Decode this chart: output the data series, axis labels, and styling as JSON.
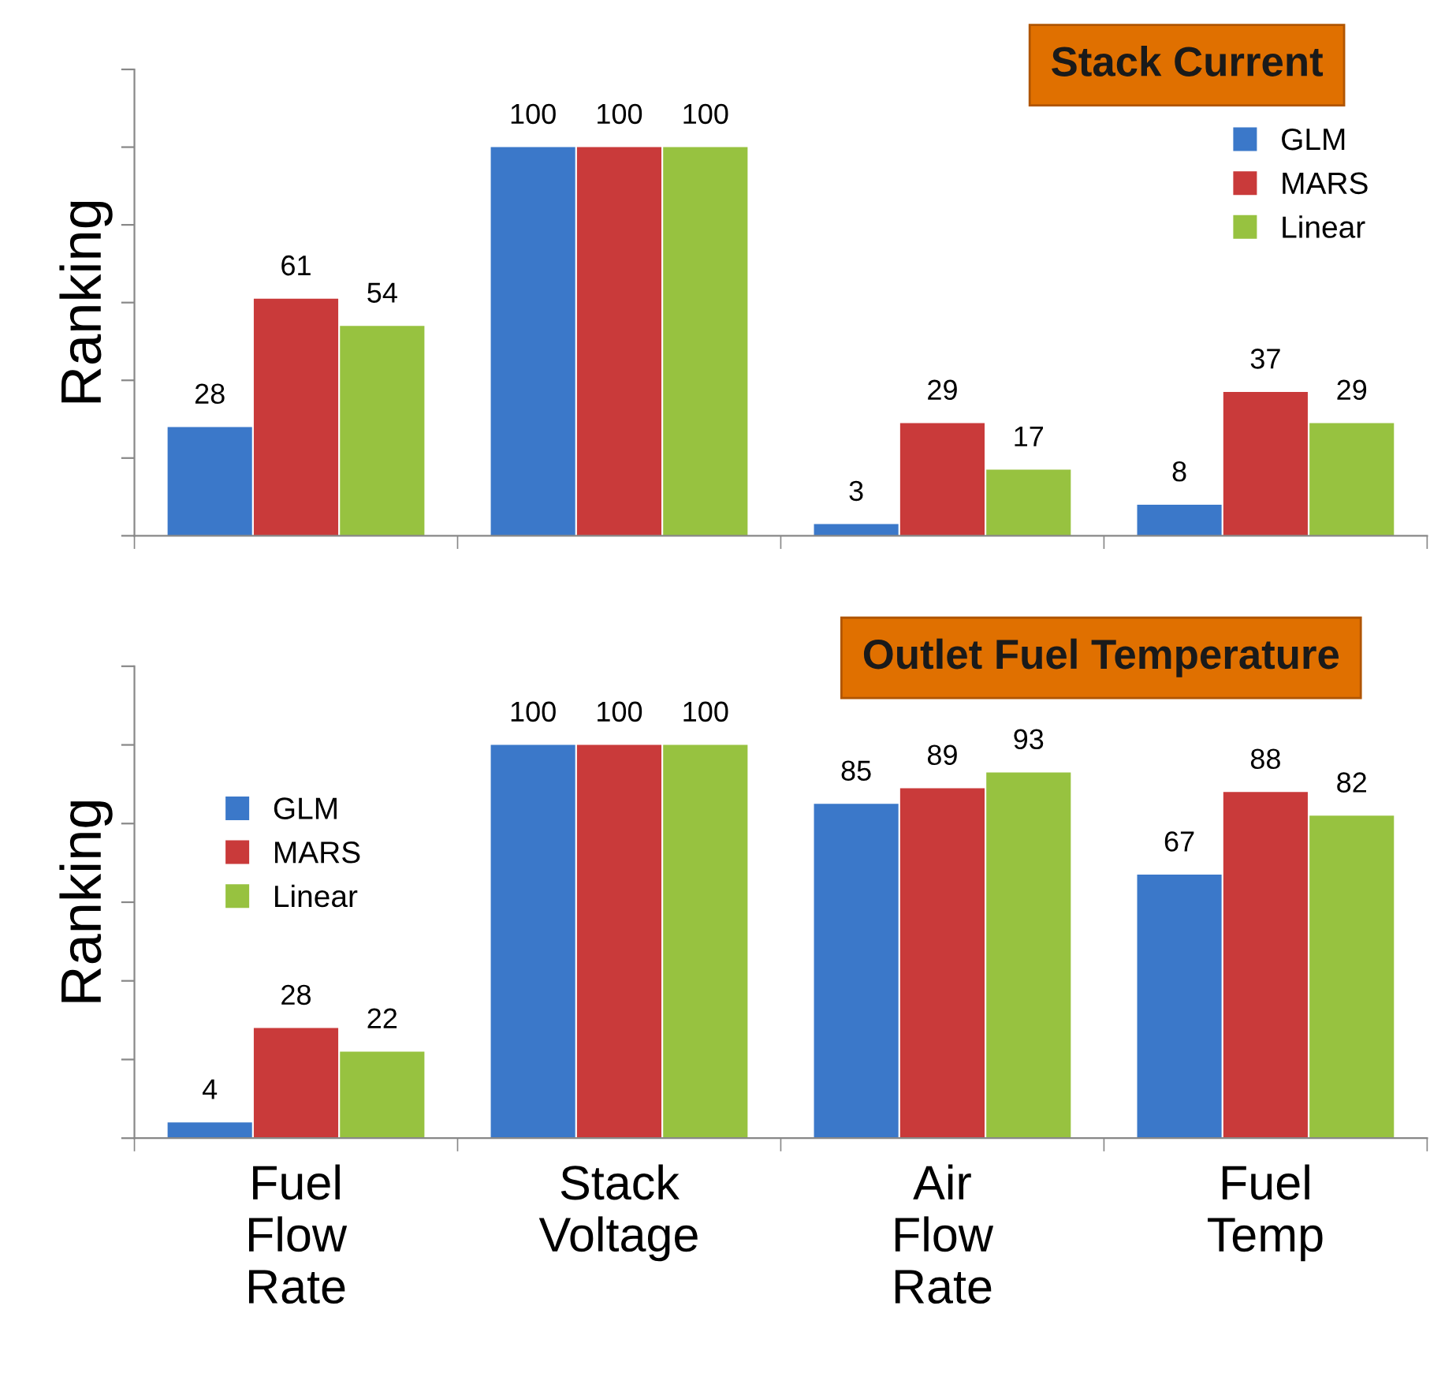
{
  "chart_data": [
    {
      "type": "bar",
      "title": "Stack Current",
      "ylabel": "Ranking",
      "categories": [
        null,
        null,
        null,
        null
      ],
      "series": [
        {
          "name": "GLM",
          "color": "#3b78c9",
          "values": [
            28,
            100,
            3,
            8
          ]
        },
        {
          "name": "MARS",
          "color": "#c93a3a",
          "values": [
            61,
            100,
            29,
            37
          ]
        },
        {
          "name": "Linear",
          "color": "#97c240",
          "values": [
            54,
            100,
            17,
            29
          ]
        }
      ],
      "ylim": [
        0,
        120
      ],
      "yticks": [
        {
          "value": 0,
          "label": null
        },
        {
          "value": 20,
          "label": null
        },
        {
          "value": 40,
          "label": null
        },
        {
          "value": 60,
          "label": null
        },
        {
          "value": 80,
          "label": null
        },
        {
          "value": 100,
          "label": null
        },
        {
          "value": 120,
          "label": null
        }
      ],
      "data_labels": true,
      "legend": "top right",
      "grid": false,
      "tick_labels": false
    },
    {
      "type": "bar",
      "title": "Outlet Fuel Temperature",
      "ylabel": "Ranking",
      "categories": [
        "Fuel Flow Rate",
        "Stack Voltage",
        "Air Flow Rate",
        "Fuel Temp"
      ],
      "series": [
        {
          "name": "GLM",
          "color": "#3b78c9",
          "values": [
            4,
            100,
            85,
            67
          ]
        },
        {
          "name": "MARS",
          "color": "#c93a3a",
          "values": [
            28,
            100,
            89,
            88
          ]
        },
        {
          "name": "Linear",
          "color": "#97c240",
          "values": [
            22,
            100,
            93,
            82
          ]
        }
      ],
      "ylim": [
        0,
        120
      ],
      "yticks": [
        {
          "value": 0,
          "label": null
        },
        {
          "value": 20,
          "label": null
        },
        {
          "value": 40,
          "label": null
        },
        {
          "value": 60,
          "label": null
        },
        {
          "value": 80,
          "label": null
        },
        {
          "value": 100,
          "label": null
        },
        {
          "value": 120,
          "label": null
        }
      ],
      "data_labels": true,
      "legend": "center left",
      "grid": false,
      "tick_labels": "x"
    }
  ]
}
